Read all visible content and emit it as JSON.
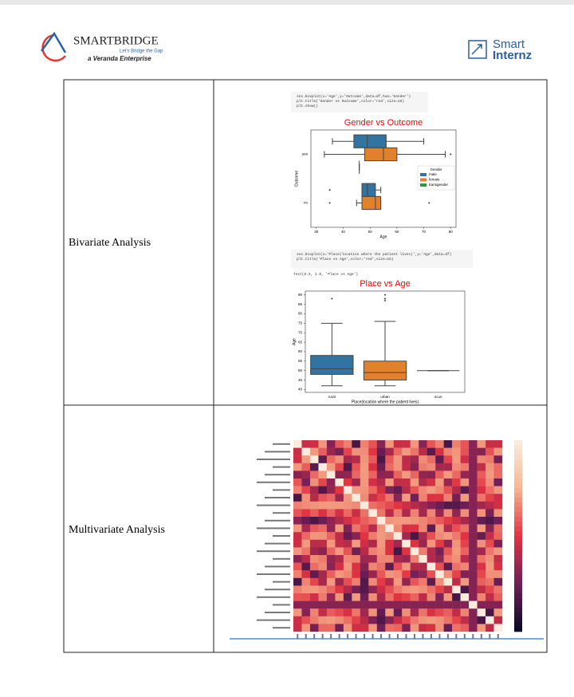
{
  "header": {
    "brand": "SMARTBRIDGE",
    "tagline": "Let's Bridge the Gap",
    "enterprise": "a Veranda Enterprise",
    "partner_top": "Smart",
    "partner_bottom": "Internz"
  },
  "table": {
    "rows": [
      {
        "label": "Bivariate Analysis",
        "figures": [
          {
            "code": [
              "sns.boxplot(x='Age',y='Outcome',data=df,hue='Gender')",
              "plt.title('Gender vs Outcome',color='red',size=15)",
              "plt.show()"
            ],
            "chart_data": {
              "type": "box",
              "orientation": "horizontal",
              "title": "Gender vs Outcome",
              "title_color": "#ff0000",
              "xlabel": "Age",
              "ylabel": "Outcome",
              "categories": [
                "yes",
                "no"
              ],
              "xlim": [
                28,
                82
              ],
              "xticks": [
                30,
                40,
                50,
                60,
                70,
                80
              ],
              "legend_title": "Gender",
              "legend": "right",
              "series": [
                {
                  "name": "male",
                  "color": "#3274a1",
                  "boxes": [
                    {
                      "whislo": 36,
                      "q1": 44,
                      "med": 49,
                      "q3": 56,
                      "whishi": 70,
                      "fliers": []
                    },
                    {
                      "whislo": 47,
                      "q1": 47,
                      "med": 49,
                      "q3": 52,
                      "whishi": 54,
                      "fliers": [
                        35
                      ]
                    }
                  ]
                },
                {
                  "name": "female",
                  "color": "#e1812c",
                  "boxes": [
                    {
                      "whislo": 33,
                      "q1": 48,
                      "med": 55,
                      "q3": 60,
                      "whishi": 78,
                      "fliers": [
                        80
                      ]
                    },
                    {
                      "whislo": 45,
                      "q1": 47,
                      "med": 52,
                      "q3": 54,
                      "whishi": 54,
                      "fliers": [
                        35,
                        72
                      ]
                    }
                  ]
                },
                {
                  "name": "transgender",
                  "color": "#3a923a",
                  "boxes": [
                    {
                      "whislo": 46,
                      "q1": 46,
                      "med": 46,
                      "q3": 46,
                      "whishi": 46,
                      "fliers": []
                    },
                    null
                  ]
                }
              ]
            }
          },
          {
            "code": [
              "sns.boxplot(x='Place(location where the patient lives)',y='Age',data=df)",
              "plt.title('Place vs Age',color='red',size=15)"
            ],
            "output": "Text(0.5, 1.0, 'Place vs Age')",
            "chart_data": {
              "type": "box",
              "orientation": "vertical",
              "title": "Place vs Age",
              "title_color": "#ff0000",
              "xlabel": "Place(location where the patient lives)",
              "ylabel": "Age",
              "categories": [
                "rural",
                "urban",
                "ocun"
              ],
              "ylim": [
                38.5,
                92
              ],
              "yticks": [
                40,
                45,
                50,
                55,
                60,
                65,
                70,
                75,
                80,
                85,
                90
              ],
              "series": [
                {
                  "colors": [
                    "#3274a1",
                    "#e1812c",
                    "#3a923a"
                  ],
                  "boxes": [
                    {
                      "whislo": 42,
                      "q1": 48,
                      "med": 51,
                      "q3": 58,
                      "whishi": 75,
                      "fliers": [
                        88
                      ]
                    },
                    {
                      "whislo": 42,
                      "q1": 45,
                      "med": 49,
                      "q3": 55,
                      "whishi": 76,
                      "fliers": [
                        87,
                        88,
                        90
                      ]
                    },
                    {
                      "whislo": 50,
                      "q1": 50,
                      "med": 50,
                      "q3": 50,
                      "whishi": 50,
                      "fliers": []
                    }
                  ]
                }
              ]
            }
          }
        ]
      },
      {
        "label": "Multivariate Analysis",
        "figures": [
          {
            "chart_data": {
              "type": "heatmap",
              "size": 25,
              "colors": [
                "#0d0a29",
                "#701f57",
                "#e13342",
                "#f6b48f",
                "#faebdd"
              ]
            }
          }
        ]
      }
    ]
  }
}
